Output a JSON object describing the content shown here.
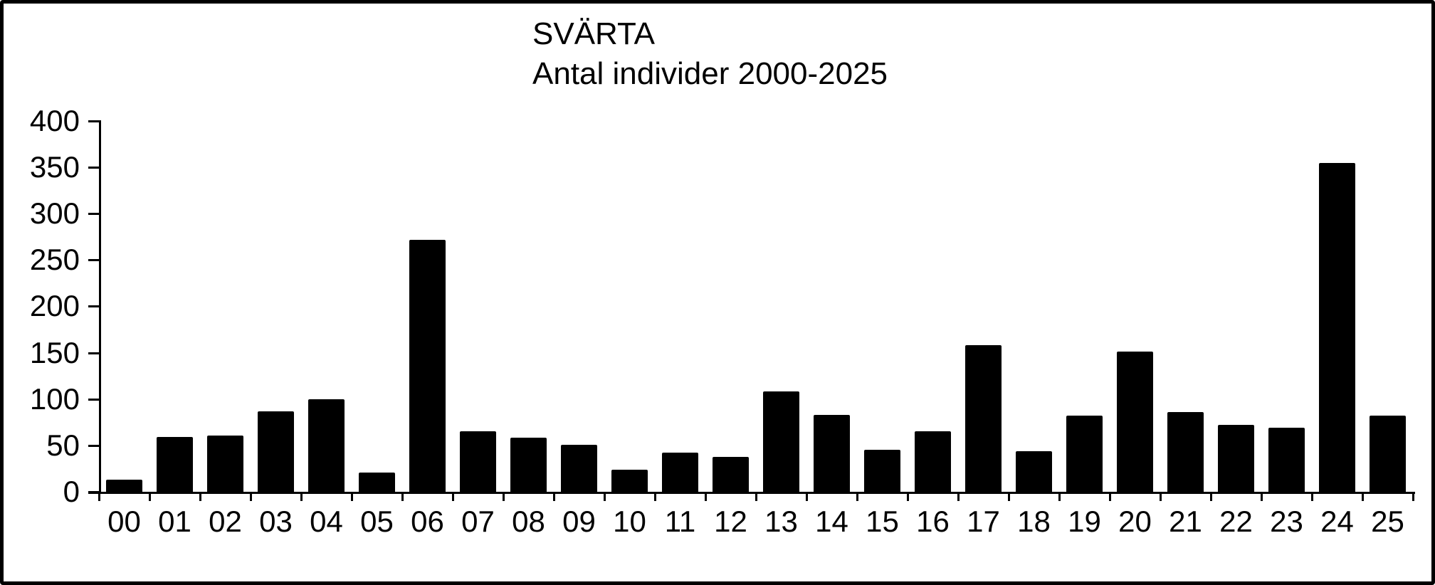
{
  "title": {
    "line1": "SVÄRTA",
    "line2": "Antal individer 2000-2025"
  },
  "chart_data": {
    "type": "bar",
    "title": "SVÄRTA",
    "subtitle": "Antal individer 2000-2025",
    "xlabel": "",
    "ylabel": "",
    "categories": [
      "00",
      "01",
      "02",
      "03",
      "04",
      "05",
      "06",
      "07",
      "08",
      "09",
      "10",
      "11",
      "12",
      "13",
      "14",
      "15",
      "16",
      "17",
      "18",
      "19",
      "20",
      "21",
      "22",
      "23",
      "24",
      "25"
    ],
    "values": [
      13,
      59,
      61,
      87,
      100,
      21,
      272,
      65,
      58,
      51,
      24,
      42,
      38,
      108,
      83,
      45,
      65,
      158,
      44,
      82,
      151,
      86,
      72,
      69,
      355,
      82
    ],
    "ylim": [
      0,
      400
    ],
    "yticks": [
      0,
      50,
      100,
      150,
      200,
      250,
      300,
      350,
      400
    ],
    "grid": false,
    "legend": false,
    "bar_color": "#000000"
  },
  "colors": {
    "background": "#ffffff",
    "border": "#000000",
    "axis": "#000000",
    "text": "#000000",
    "bar": "#000000"
  }
}
